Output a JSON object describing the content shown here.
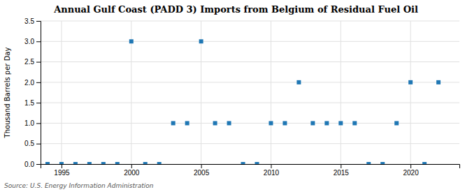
{
  "chart_data": {
    "type": "scatter",
    "title": "Annual Gulf Coast (PADD 3) Imports from Belgium of Residual Fuel Oil",
    "ylabel": "Thousand Barrels per Day",
    "source": "Source: U.S. Energy Information Administration",
    "x": [
      1994,
      1995,
      1996,
      1997,
      1998,
      1999,
      2000,
      2001,
      2002,
      2003,
      2004,
      2005,
      2006,
      2007,
      2008,
      2009,
      2010,
      2011,
      2012,
      2013,
      2014,
      2015,
      2016,
      2017,
      2018,
      2019,
      2020,
      2021,
      2022
    ],
    "values": [
      0,
      0,
      0,
      0,
      0,
      0,
      3.0,
      0,
      0,
      1.0,
      1.0,
      3.0,
      1.0,
      1.0,
      0,
      0,
      1.0,
      1.0,
      2.0,
      1.0,
      1.0,
      1.0,
      1.0,
      0,
      0,
      1.0,
      2.0,
      0,
      2.0
    ],
    "marker": "square",
    "xlim": [
      1993.5,
      2023.5
    ],
    "xticks": [
      1995,
      2000,
      2005,
      2010,
      2015,
      2020
    ],
    "ylim": [
      0.0,
      3.5
    ],
    "yticks": [
      {
        "value": 0.0,
        "label": "0.0"
      },
      0.5,
      {
        "value": 1.0,
        "label": "1.0"
      },
      1.5,
      {
        "value": 2.0,
        "label": "2.0"
      },
      2.5,
      {
        "value": 3.0,
        "label": "3.0"
      },
      3.5
    ],
    "grid": true
  }
}
